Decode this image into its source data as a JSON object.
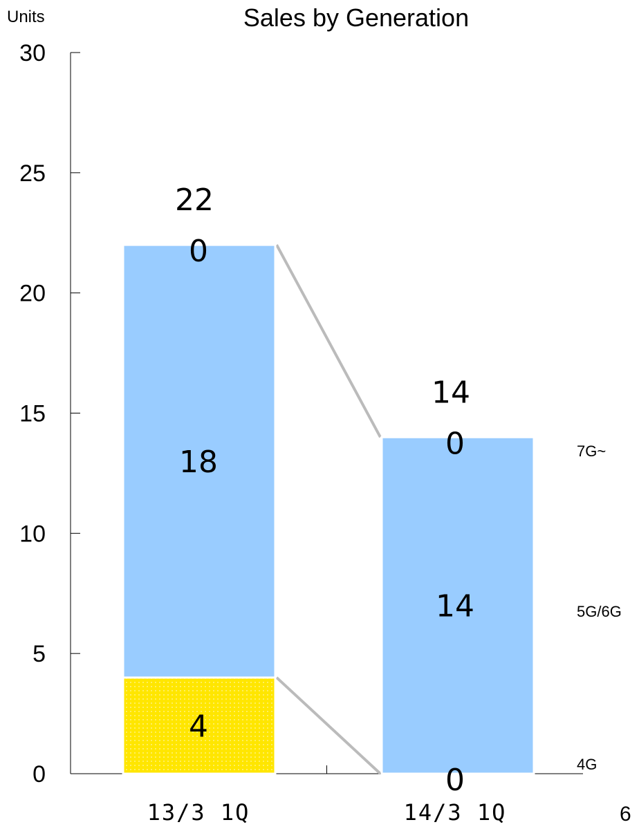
{
  "page_number": "6",
  "chart_data": {
    "type": "bar",
    "stacked": true,
    "title": "Sales by Generation",
    "ylabel": "Units",
    "ylim": [
      0,
      30
    ],
    "yticks": [
      0,
      5,
      10,
      15,
      20,
      25,
      30
    ],
    "categories": [
      "13/3 1Q",
      "14/3 1Q"
    ],
    "series": [
      {
        "name": "4G",
        "values": [
          4,
          0
        ],
        "color": "#FFE600",
        "pattern": "dotted"
      },
      {
        "name": "5G/6G",
        "values": [
          18,
          14
        ],
        "color": "#99CCFF"
      },
      {
        "name": "7G~",
        "values": [
          0,
          0
        ],
        "color": "#99CCFF"
      }
    ],
    "totals": [
      22,
      14
    ],
    "total_labels": [
      "22",
      "14"
    ],
    "connector_color": "#BBBBBB",
    "grid": false,
    "legend_placement": "right"
  }
}
